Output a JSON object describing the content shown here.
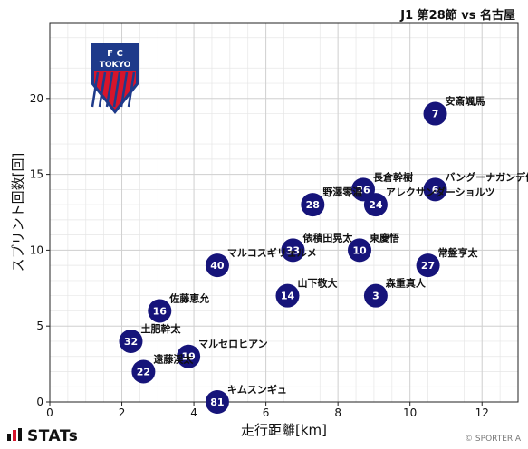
{
  "title": "J1 第28節 vs 名古屋",
  "footer": {
    "brand": "STATs",
    "copyright": "© SPORTERIA"
  },
  "colors": {
    "marker": "#16147a",
    "grid": "#d0d0d0",
    "axis": "#222222"
  },
  "team_logo": {
    "name": "FC TOKYO",
    "letters_top": "F   C",
    "letters_bottom": "TOKYO",
    "primary": "#1e3a8a",
    "accent": "#d7142b"
  },
  "chart_data": {
    "type": "scatter",
    "xlabel": "走行距離[km]",
    "ylabel": "スプリント回数[回]",
    "xlim": [
      0,
      13
    ],
    "ylim": [
      0,
      25
    ],
    "xticks": [
      0,
      2,
      4,
      6,
      8,
      10,
      12
    ],
    "yticks": [
      0,
      5,
      10,
      15,
      20
    ],
    "grid": true,
    "points": [
      {
        "number": "7",
        "name": "安斎颯馬",
        "x": 10.7,
        "y": 19
      },
      {
        "number": "26",
        "name": "長倉幹樹",
        "x": 8.7,
        "y": 14
      },
      {
        "number": "6",
        "name": "バングーナガンデ佳史扶",
        "x": 10.7,
        "y": 14
      },
      {
        "number": "28",
        "name": "野澤零温",
        "x": 7.3,
        "y": 13
      },
      {
        "number": "24",
        "name": "アレクサンダーショルツ",
        "x": 9.05,
        "y": 13
      },
      {
        "number": "33",
        "name": "俵積田晃太",
        "x": 6.75,
        "y": 10
      },
      {
        "number": "10",
        "name": "東慶悟",
        "x": 8.6,
        "y": 10
      },
      {
        "number": "40",
        "name": "マルコスギリェルメ",
        "x": 4.65,
        "y": 9
      },
      {
        "number": "27",
        "name": "常盤亨太",
        "x": 10.5,
        "y": 9
      },
      {
        "number": "14",
        "name": "山下敬大",
        "x": 6.6,
        "y": 7
      },
      {
        "number": "3",
        "name": "森重真人",
        "x": 9.05,
        "y": 7
      },
      {
        "number": "16",
        "name": "佐藤恵允",
        "x": 3.05,
        "y": 6
      },
      {
        "number": "32",
        "name": "土肥幹太",
        "x": 2.25,
        "y": 4
      },
      {
        "number": "19",
        "name": "マルセロヒアン",
        "x": 3.85,
        "y": 3
      },
      {
        "number": "22",
        "name": "遠藤渓太",
        "x": 2.6,
        "y": 2
      },
      {
        "number": "81",
        "name": "キムスンギュ",
        "x": 4.65,
        "y": 0
      }
    ]
  }
}
